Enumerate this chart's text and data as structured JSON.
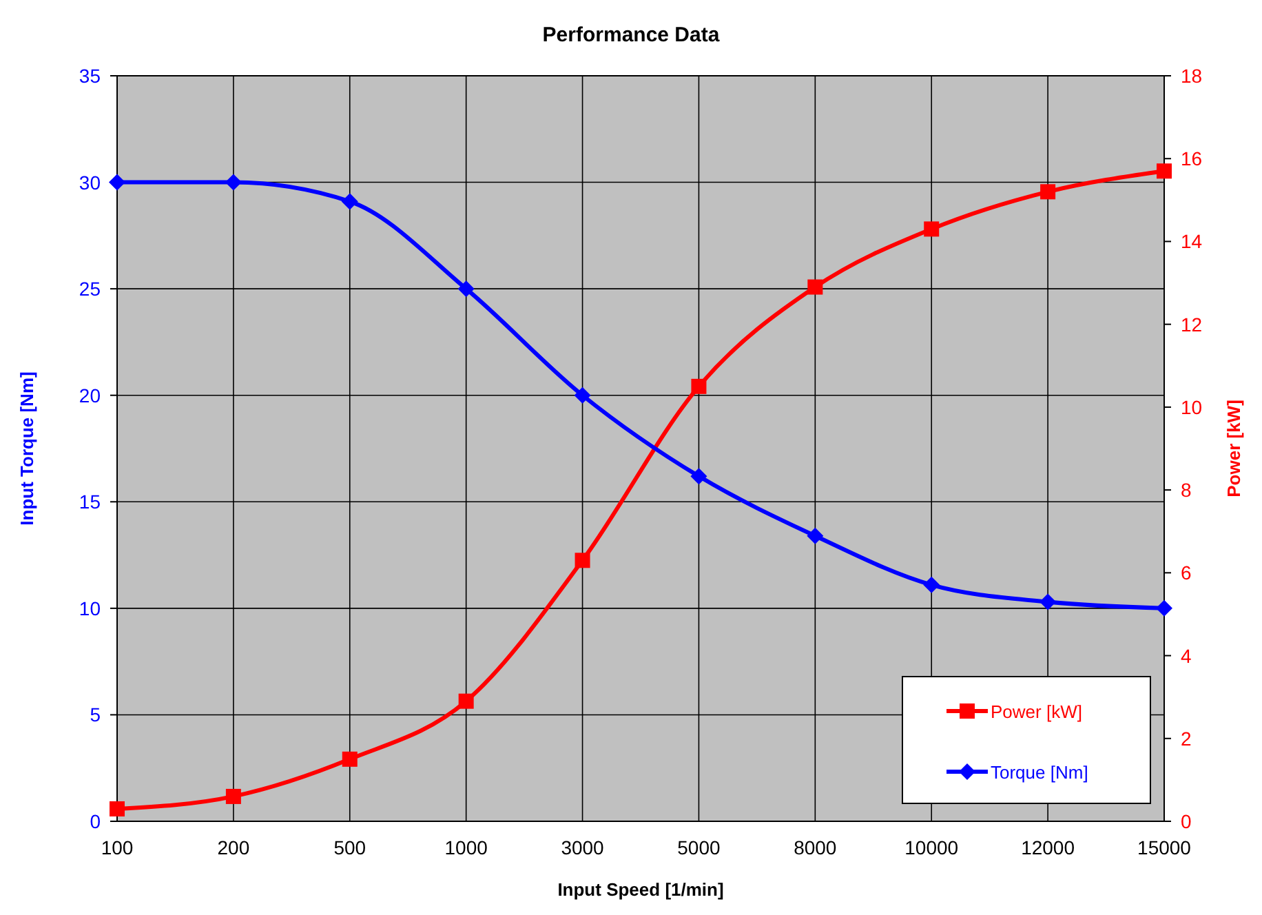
{
  "chart_data": {
    "type": "line",
    "title": "Performance Data",
    "xlabel": "Input Speed [1/min]",
    "ylabel": "Input Torque [Nm]",
    "y2label": "Power [kW]",
    "categories": [
      "100",
      "200",
      "500",
      "1000",
      "3000",
      "5000",
      "8000",
      "10000",
      "12000",
      "15000"
    ],
    "series": [
      {
        "name": "Power [kW]",
        "color": "#ff0000",
        "axis": "y2",
        "marker": "square",
        "values": [
          0.3,
          0.6,
          1.5,
          2.9,
          6.3,
          10.5,
          12.9,
          14.3,
          15.2,
          15.7
        ]
      },
      {
        "name": "Torque [Nm]",
        "color": "#0000ff",
        "marker": "diamond",
        "values": [
          30,
          30,
          29.1,
          25,
          20,
          16.2,
          13.4,
          11.1,
          10.3,
          10
        ]
      }
    ],
    "ylim": [
      0,
      35
    ],
    "yticks": [
      0,
      5,
      10,
      15,
      20,
      25,
      30,
      35
    ],
    "y2lim": [
      0,
      18
    ],
    "y2ticks": [
      0,
      2,
      4,
      6,
      8,
      10,
      12,
      14,
      16,
      18
    ],
    "grid": true,
    "legend": "bottom right",
    "line_style": "solid"
  }
}
